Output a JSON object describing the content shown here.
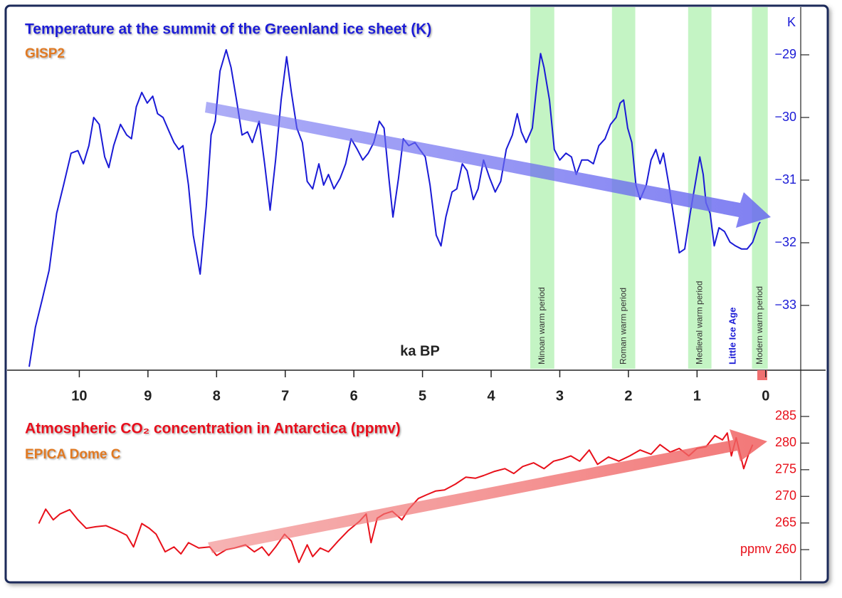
{
  "chart_data": [
    {
      "type": "line",
      "title": "Temperature at the summit of the Greenland ice sheet (K)",
      "subtitle": "GISP2",
      "x_label": "ka BP",
      "y_unit": "K",
      "xlim": [
        11,
        -0.5
      ],
      "xticks": [
        10,
        9,
        8,
        7,
        6,
        5,
        4,
        3,
        2,
        1,
        0
      ],
      "ylim": [
        -34,
        -28.25
      ],
      "yticks": [
        {
          "value": -29,
          "label": "−29"
        },
        {
          "value": -30,
          "label": "−30"
        },
        {
          "value": -31,
          "label": "−31"
        },
        {
          "value": -32,
          "label": "−32"
        },
        {
          "value": -33,
          "label": "−33"
        }
      ],
      "bands": [
        {
          "name": "Minoan warm period",
          "start": 3.43,
          "end": 3.08
        },
        {
          "name": "Roman warm period",
          "start": 2.24,
          "end": 1.9
        },
        {
          "name": "Medieval warm period",
          "start": 1.13,
          "end": 0.79
        },
        {
          "name": "Modern warm period",
          "start": 0.2,
          "end": -0.03
        }
      ],
      "band_color": "#c4f4c4",
      "annotations": [
        "Little Ice Age"
      ],
      "series": [
        {
          "name": "GISP2",
          "color": "#1a1ad6",
          "x": [
            10.73,
            10.64,
            10.54,
            10.44,
            10.33,
            10.23,
            10.12,
            10.02,
            9.94,
            9.86,
            9.79,
            9.71,
            9.63,
            9.57,
            9.5,
            9.4,
            9.31,
            9.24,
            9.17,
            9.09,
            9.01,
            8.93,
            8.86,
            8.78,
            8.69,
            8.62,
            8.55,
            8.49,
            8.41,
            8.34,
            8.24,
            8.15,
            8.08,
            8.02,
            7.95,
            7.86,
            7.79,
            7.71,
            7.63,
            7.55,
            7.48,
            7.38,
            7.3,
            7.22,
            7.14,
            7.06,
            6.98,
            6.91,
            6.83,
            6.75,
            6.68,
            6.6,
            6.51,
            6.44,
            6.37,
            6.29,
            6.2,
            6.12,
            6.04,
            5.95,
            5.87,
            5.79,
            5.71,
            5.63,
            5.56,
            5.49,
            5.43,
            5.35,
            5.28,
            5.2,
            5.11,
            5.04,
            4.96,
            4.89,
            4.8,
            4.73,
            4.66,
            4.57,
            4.5,
            4.42,
            4.35,
            4.26,
            4.19,
            4.11,
            4.02,
            3.94,
            3.86,
            3.78,
            3.69,
            3.62,
            3.56,
            3.49,
            3.4,
            3.33,
            3.28,
            3.23,
            3.15,
            3.08,
            3.0,
            2.91,
            2.83,
            2.76,
            2.68,
            2.59,
            2.51,
            2.43,
            2.34,
            2.26,
            2.18,
            2.12,
            2.07,
            2.01,
            1.95,
            1.89,
            1.83,
            1.74,
            1.67,
            1.6,
            1.54,
            1.49,
            1.41,
            1.33,
            1.26,
            1.18,
            1.1,
            1.03,
            0.96,
            0.91,
            0.87,
            0.81,
            0.75,
            0.68,
            0.6,
            0.52,
            0.44,
            0.35,
            0.27,
            0.19,
            0.1,
            0.08
          ],
          "values": [
            -33.98,
            -33.35,
            -32.9,
            -32.44,
            -31.53,
            -31.08,
            -30.57,
            -30.53,
            -30.74,
            -30.45,
            -30.0,
            -30.11,
            -30.63,
            -30.8,
            -30.45,
            -30.11,
            -30.28,
            -30.34,
            -29.83,
            -29.6,
            -29.77,
            -29.66,
            -29.94,
            -30.0,
            -30.23,
            -30.4,
            -30.51,
            -30.45,
            -31.08,
            -31.88,
            -32.5,
            -31.42,
            -30.28,
            -30.06,
            -29.26,
            -28.92,
            -29.2,
            -29.72,
            -30.28,
            -30.23,
            -30.4,
            -30.06,
            -30.74,
            -31.48,
            -30.68,
            -29.72,
            -29.03,
            -29.6,
            -30.17,
            -30.4,
            -31.02,
            -31.14,
            -30.74,
            -31.08,
            -30.91,
            -31.14,
            -30.97,
            -30.74,
            -30.34,
            -30.51,
            -30.68,
            -30.57,
            -30.4,
            -30.06,
            -30.17,
            -30.97,
            -31.59,
            -30.97,
            -30.34,
            -30.45,
            -30.4,
            -30.51,
            -30.63,
            -31.08,
            -31.88,
            -32.05,
            -31.59,
            -31.19,
            -31.14,
            -30.74,
            -30.85,
            -31.31,
            -31.14,
            -30.68,
            -30.97,
            -31.19,
            -31.02,
            -30.51,
            -30.28,
            -29.94,
            -30.23,
            -30.4,
            -30.17,
            -29.43,
            -28.98,
            -29.2,
            -29.72,
            -30.51,
            -30.68,
            -30.57,
            -30.63,
            -30.91,
            -30.68,
            -30.68,
            -30.74,
            -30.45,
            -30.34,
            -30.11,
            -30.0,
            -29.77,
            -29.72,
            -30.17,
            -30.4,
            -31.08,
            -31.31,
            -31.08,
            -30.68,
            -30.51,
            -30.74,
            -30.57,
            -31.08,
            -31.65,
            -32.16,
            -32.1,
            -31.53,
            -31.08,
            -30.63,
            -30.91,
            -31.36,
            -31.53,
            -32.05,
            -31.76,
            -31.82,
            -31.99,
            -32.05,
            -32.1,
            -32.1,
            -31.99,
            -31.7,
            -31.67
          ]
        }
      ]
    },
    {
      "type": "line",
      "title": "Atmospheric CO₂ concentration in Antarctica (ppmv)",
      "subtitle": "EPICA Dome C",
      "xlim": [
        11,
        -0.5
      ],
      "ylim": [
        256,
        286
      ],
      "yticks": [
        285,
        280,
        275,
        270,
        265,
        {
          "value": 260,
          "label": "ppmv 260"
        }
      ],
      "series": [
        {
          "name": "EPICA Dome C",
          "color": "#e8101a",
          "x": [
            10.59,
            10.49,
            10.38,
            10.28,
            10.14,
            10.02,
            9.9,
            9.76,
            9.61,
            9.45,
            9.31,
            9.21,
            9.09,
            8.98,
            8.88,
            8.75,
            8.62,
            8.52,
            8.41,
            8.26,
            8.1,
            8.0,
            7.86,
            7.74,
            7.58,
            7.45,
            7.34,
            7.24,
            7.14,
            7.01,
            6.91,
            6.8,
            6.68,
            6.6,
            6.49,
            6.37,
            6.23,
            6.08,
            5.92,
            5.82,
            5.75,
            5.66,
            5.56,
            5.44,
            5.3,
            5.2,
            5.06,
            4.94,
            4.81,
            4.68,
            4.52,
            4.37,
            4.23,
            4.11,
            3.95,
            3.8,
            3.67,
            3.54,
            3.38,
            3.23,
            3.09,
            2.97,
            2.84,
            2.71,
            2.57,
            2.45,
            2.29,
            2.14,
            1.98,
            1.83,
            1.67,
            1.54,
            1.39,
            1.26,
            1.12,
            1.0,
            0.87,
            0.74,
            0.63,
            0.56,
            0.5,
            0.43,
            0.32,
            0.25,
            0.19
          ],
          "values": [
            264.9,
            267.6,
            265.6,
            266.7,
            267.5,
            265.6,
            264.0,
            264.3,
            264.5,
            263.6,
            262.7,
            260.5,
            264.9,
            264.0,
            262.9,
            259.6,
            260.5,
            259.2,
            261.3,
            260.3,
            260.5,
            258.9,
            260.0,
            260.3,
            260.9,
            259.6,
            260.5,
            258.9,
            260.5,
            262.9,
            261.6,
            257.6,
            260.9,
            258.7,
            260.3,
            259.6,
            261.6,
            263.6,
            265.3,
            266.7,
            261.3,
            265.9,
            266.7,
            267.2,
            265.6,
            267.6,
            269.6,
            270.3,
            271.0,
            271.2,
            272.3,
            273.6,
            273.4,
            273.9,
            274.7,
            275.2,
            274.3,
            275.6,
            276.3,
            275.2,
            276.6,
            277.0,
            277.6,
            276.6,
            278.7,
            276.0,
            277.4,
            276.6,
            277.6,
            278.7,
            277.9,
            279.7,
            278.3,
            279.0,
            277.6,
            279.0,
            279.3,
            281.4,
            280.6,
            281.9,
            277.6,
            281.0,
            275.2,
            277.9,
            279.7
          ]
        }
      ]
    }
  ]
}
